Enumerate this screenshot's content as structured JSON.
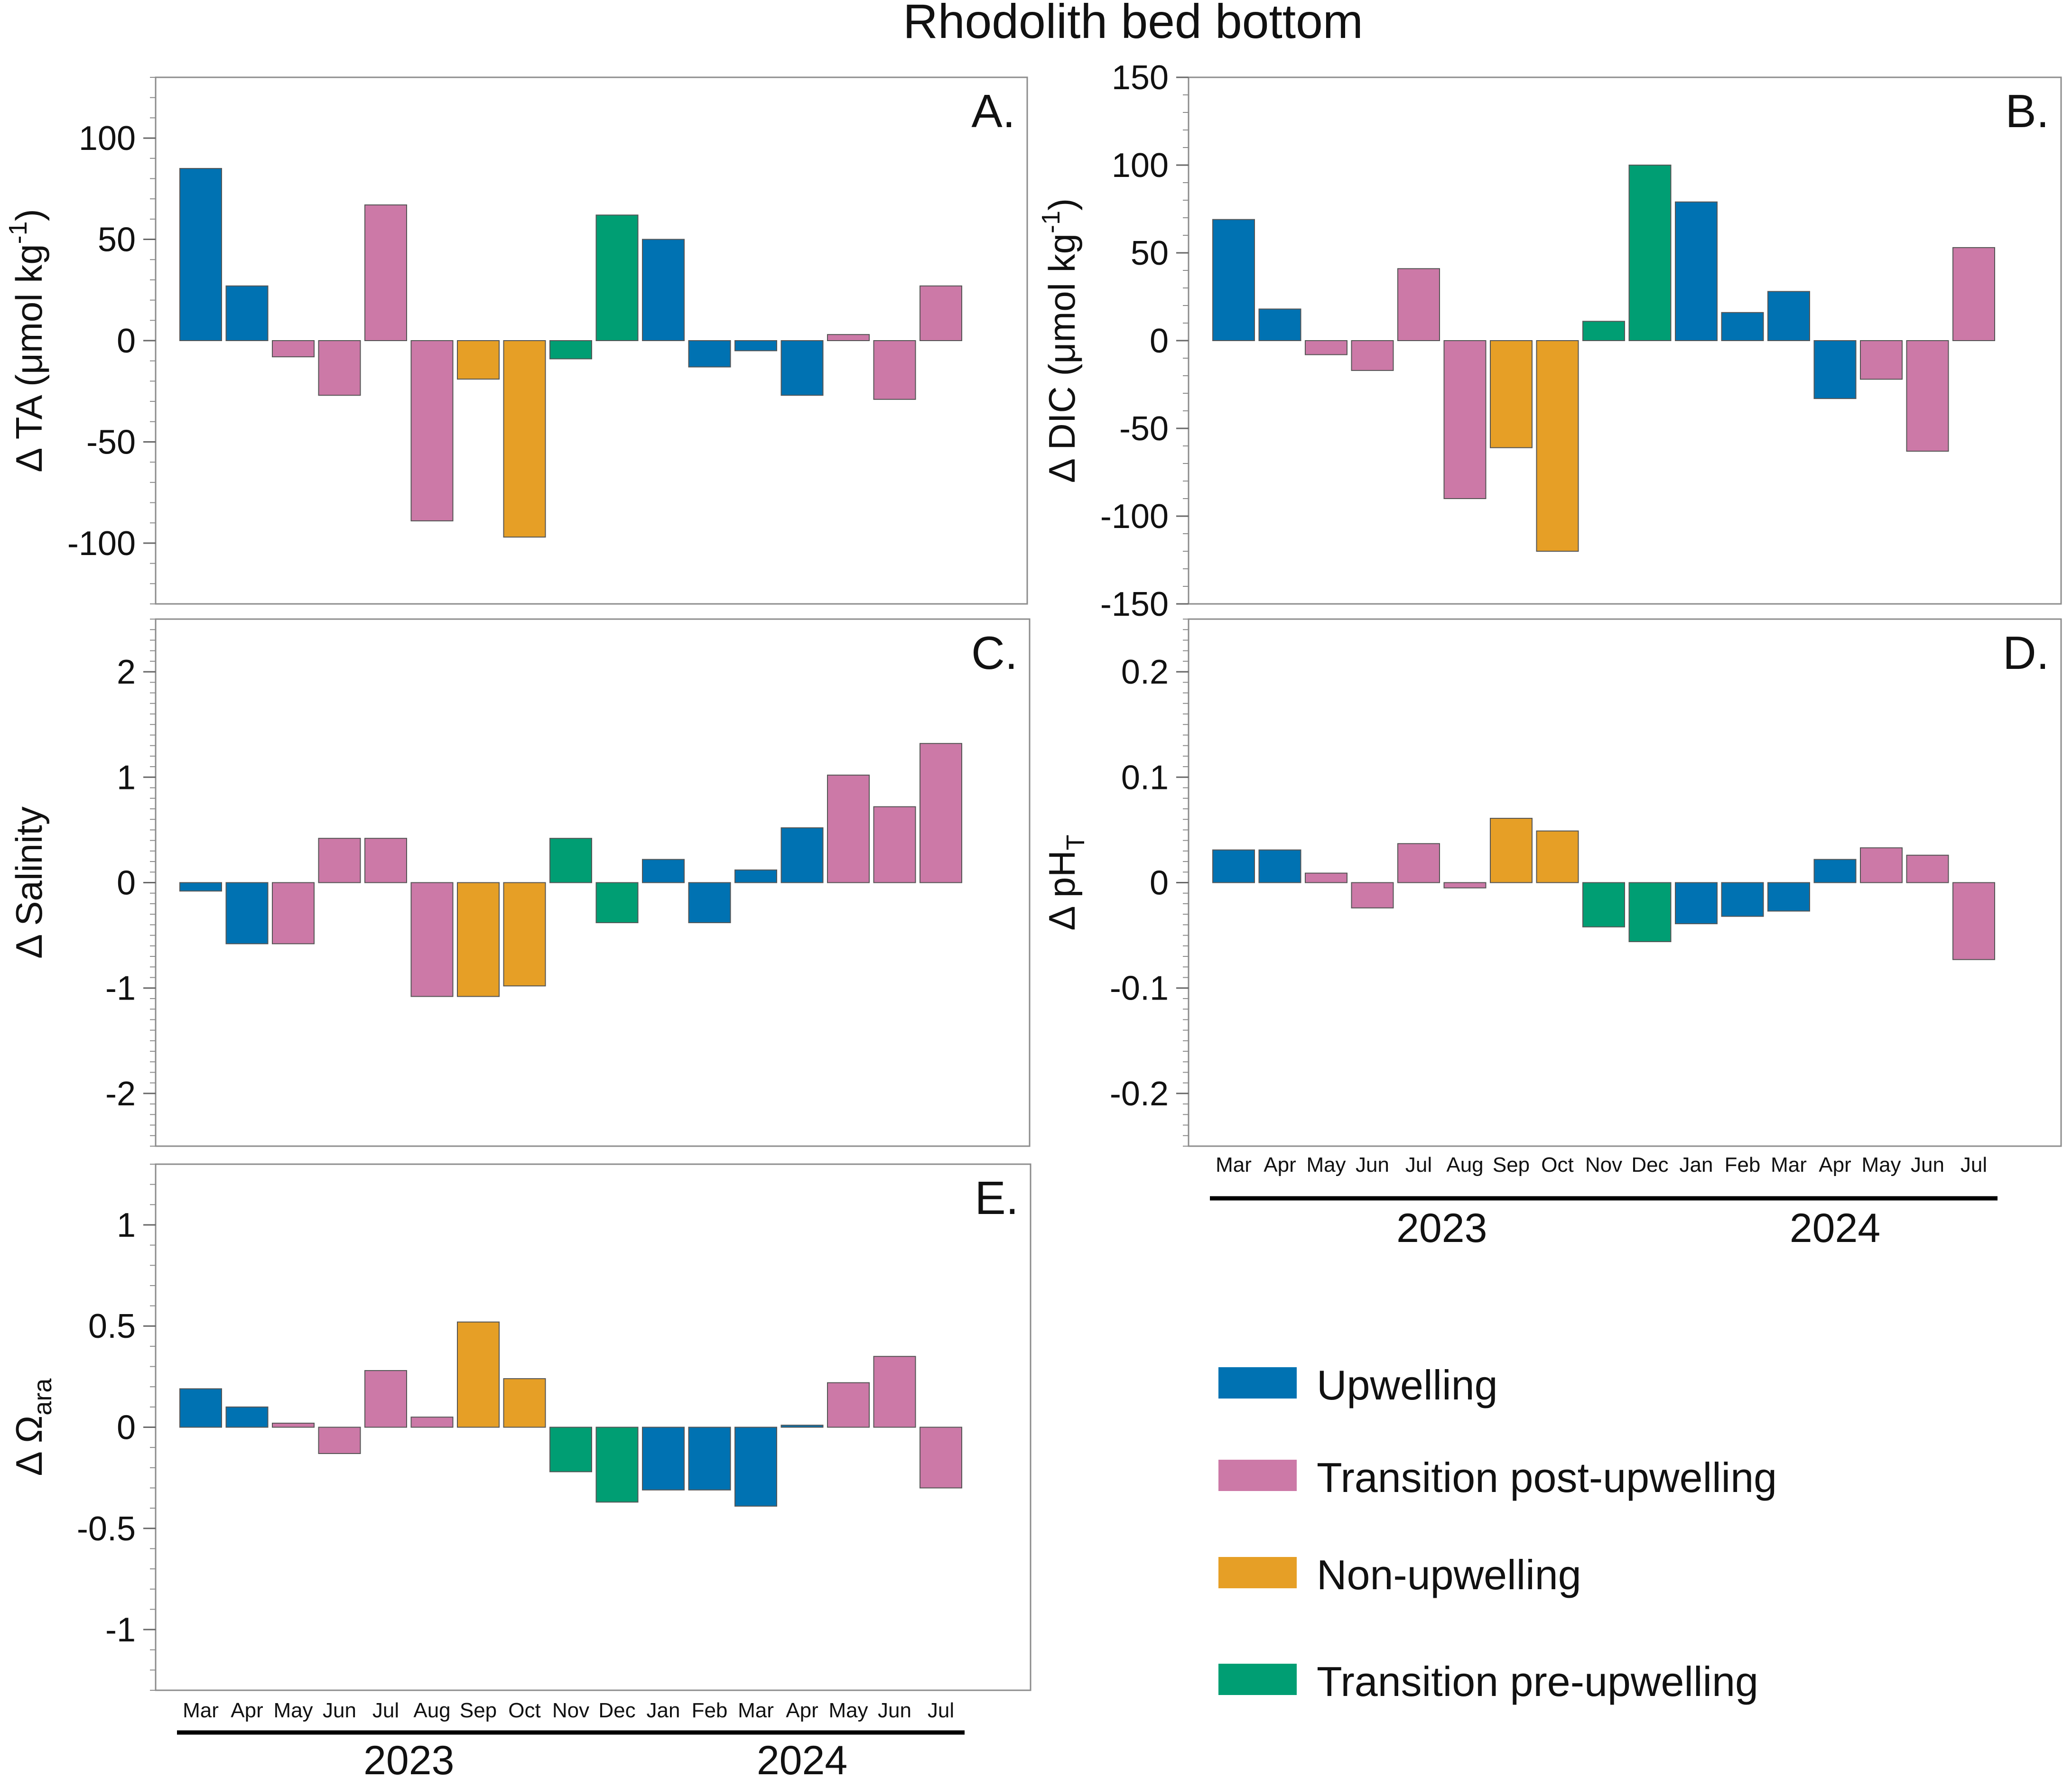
{
  "figure_title": "Rhodolith bed bottom",
  "months": [
    "Mar",
    "Apr",
    "May",
    "Jun",
    "Jul",
    "Aug",
    "Sep",
    "Oct",
    "Nov",
    "Dec",
    "Jan",
    "Feb",
    "Mar",
    "Apr",
    "May",
    "Jun",
    "Jul"
  ],
  "years": [
    {
      "label": "2023",
      "first": 0,
      "last": 9
    },
    {
      "label": "2024",
      "first": 10,
      "last": 16
    }
  ],
  "season_colors": {
    "U": "#0072B2",
    "P": "#CC79A7",
    "N": "#E69F26",
    "R": "#009E73"
  },
  "seasons": [
    "U",
    "U",
    "P",
    "P",
    "P",
    "P",
    "N",
    "N",
    "R",
    "R",
    "U",
    "U",
    "U",
    "U",
    "P",
    "P",
    "P"
  ],
  "legend": [
    {
      "key": "U",
      "label": "Upwelling"
    },
    {
      "key": "P",
      "label": "Transition post-upwelling"
    },
    {
      "key": "N",
      "label": "Non-upwelling"
    },
    {
      "key": "R",
      "label": "Transition pre-upwelling"
    }
  ],
  "chart_data": [
    {
      "id": "A",
      "type": "bar",
      "panel_label": "A.",
      "ylabel_main": "Δ TA (μmol kg",
      "ylabel_sup": "-1",
      "ylabel_tail": ")",
      "ylim": [
        -130,
        130
      ],
      "yticks": [
        -100,
        -50,
        0,
        50,
        100
      ],
      "ytick_labels": [
        "-100",
        "-50",
        "0",
        "50",
        "100"
      ],
      "minor_step": 10,
      "values": [
        85,
        27,
        -8,
        -27,
        67,
        -89,
        -19,
        -97,
        -9,
        62,
        50,
        -13,
        -5,
        -27,
        3,
        -29,
        27
      ]
    },
    {
      "id": "B",
      "type": "bar",
      "panel_label": "B.",
      "ylabel_main": "Δ DIC (μmol kg",
      "ylabel_sup": "-1",
      "ylabel_tail": ")",
      "ylim": [
        -150,
        150
      ],
      "yticks": [
        -150,
        -100,
        -50,
        0,
        50,
        100,
        150
      ],
      "ytick_labels": [
        "-150",
        "-100",
        "-50",
        "0",
        "50",
        "100",
        "150"
      ],
      "minor_step": 10,
      "values": [
        69,
        18,
        -8,
        -17,
        41,
        -90,
        -61,
        -120,
        11,
        100,
        79,
        16,
        28,
        -33,
        -22,
        -63,
        53
      ]
    },
    {
      "id": "C",
      "type": "bar",
      "panel_label": "C.",
      "ylabel_main": "Δ Salinity",
      "ylim": [
        -2.5,
        2.5
      ],
      "yticks": [
        -2,
        -1,
        0,
        1,
        2
      ],
      "ytick_labels": [
        "-2",
        "-1",
        "0",
        "1",
        "2"
      ],
      "minor_step": 0.1,
      "values": [
        -0.08,
        -0.58,
        -0.58,
        0.42,
        0.42,
        -1.08,
        -1.08,
        -0.98,
        0.42,
        -0.38,
        0.22,
        -0.38,
        0.12,
        0.52,
        1.02,
        0.72,
        1.32
      ]
    },
    {
      "id": "D",
      "type": "bar",
      "panel_label": "D.",
      "ylabel_main": "Δ pH",
      "ylabel_sub": "T",
      "ylim": [
        -0.25,
        0.25
      ],
      "yticks": [
        -0.2,
        -0.1,
        0,
        0.1,
        0.2
      ],
      "ytick_labels": [
        "-0.2",
        "-0.1",
        "0",
        "0.1",
        "0.2"
      ],
      "minor_step": 0.01,
      "values": [
        0.031,
        0.031,
        0.009,
        -0.024,
        0.037,
        -0.005,
        0.061,
        0.049,
        -0.042,
        -0.056,
        -0.039,
        -0.032,
        -0.027,
        0.022,
        0.033,
        0.026,
        -0.073
      ]
    },
    {
      "id": "E",
      "type": "bar",
      "panel_label": "E.",
      "ylabel_main": "Δ Ω",
      "ylabel_sub": "ara",
      "ylim": [
        -1.3,
        1.3
      ],
      "yticks": [
        -1,
        -0.5,
        0,
        0.5,
        1
      ],
      "ytick_labels": [
        "-1",
        "-0.5",
        "0",
        "0.5",
        "1"
      ],
      "minor_step": 0.1,
      "values": [
        0.19,
        0.1,
        0.02,
        -0.13,
        0.28,
        0.05,
        0.52,
        0.24,
        -0.22,
        -0.37,
        -0.31,
        -0.31,
        -0.39,
        0.01,
        0.22,
        0.35,
        -0.3
      ]
    }
  ]
}
